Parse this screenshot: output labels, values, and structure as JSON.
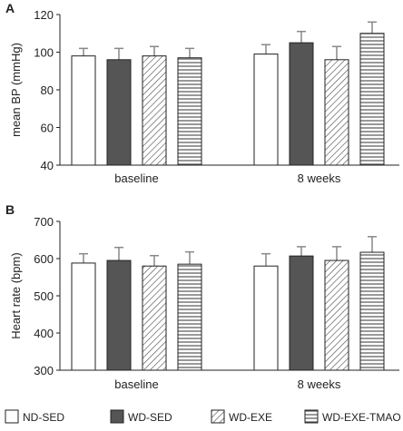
{
  "colors": {
    "ND-SED": "#ffffff",
    "WD-SED": "#555555",
    "WD-EXE": "hatch",
    "WD-EXE-TMAO": "horizontal-stripes",
    "outline": "#222222",
    "error_bar": "#888888"
  },
  "legend": [
    "ND-SED",
    "WD-SED",
    "WD-EXE",
    "WD-EXE-TMAO"
  ],
  "chart_data": [
    {
      "panel": "A",
      "type": "bar",
      "ylabel": "mean BP (mmHg)",
      "ylim": [
        40,
        120
      ],
      "yticks": [
        40,
        60,
        80,
        100,
        120
      ],
      "categories": [
        "baseline",
        "8 weeks"
      ],
      "series": [
        {
          "name": "ND-SED",
          "values": [
            98,
            99
          ],
          "errors": [
            4,
            5
          ]
        },
        {
          "name": "WD-SED",
          "values": [
            96,
            105
          ],
          "errors": [
            6,
            6
          ]
        },
        {
          "name": "WD-EXE",
          "values": [
            98,
            96
          ],
          "errors": [
            5,
            7
          ]
        },
        {
          "name": "WD-EXE-TMAO",
          "values": [
            97,
            110
          ],
          "errors": [
            5,
            6
          ]
        }
      ],
      "legend_position": "bottom"
    },
    {
      "panel": "B",
      "type": "bar",
      "ylabel": "Heart rate (bpm)",
      "ylim": [
        300,
        700
      ],
      "yticks": [
        300,
        400,
        500,
        600,
        700
      ],
      "categories": [
        "baseline",
        "8 weeks"
      ],
      "series": [
        {
          "name": "ND-SED",
          "values": [
            588,
            580
          ],
          "errors": [
            25,
            33
          ]
        },
        {
          "name": "WD-SED",
          "values": [
            595,
            607
          ],
          "errors": [
            35,
            25
          ]
        },
        {
          "name": "WD-EXE",
          "values": [
            580,
            595
          ],
          "errors": [
            28,
            37
          ]
        },
        {
          "name": "WD-EXE-TMAO",
          "values": [
            585,
            617
          ],
          "errors": [
            33,
            42
          ]
        }
      ],
      "legend_position": "bottom"
    }
  ]
}
